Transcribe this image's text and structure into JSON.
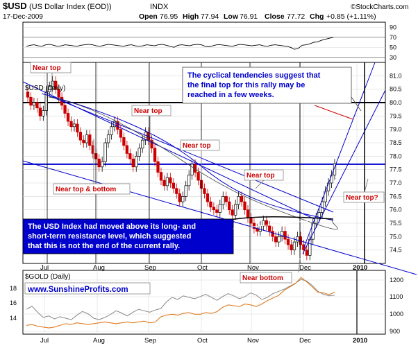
{
  "header": {
    "symbol": "$USD",
    "name": "(US Dollar Index (EOD))",
    "exchange": "INDX",
    "date": "17-Dec-2009",
    "open_label": "Open",
    "open": "76.95",
    "high_label": "High",
    "high": "77.94",
    "low_label": "Low",
    "low": "76.91",
    "close_label": "Close",
    "close": "77.72",
    "chg_label": "Chg",
    "chg": "+0.85 (+1.11%)",
    "credit": "©StockCharts.com"
  },
  "chart_data": [
    {
      "type": "line",
      "panel": "rsi",
      "y_ticks": [
        "90",
        "70",
        "50",
        "30"
      ],
      "ylim": [
        20,
        100
      ],
      "reference_lines": [
        70,
        30
      ],
      "series": [
        {
          "values": [
            52,
            54,
            55,
            53,
            52,
            55,
            56,
            54,
            52,
            53,
            55,
            54,
            53,
            52,
            54,
            55,
            56,
            55,
            53,
            52,
            54,
            56,
            55,
            54,
            53,
            52,
            54,
            55,
            53,
            52,
            53,
            55,
            54,
            53,
            55,
            56,
            54,
            52,
            50,
            54,
            55,
            54,
            53,
            55,
            56,
            55,
            52,
            51,
            53,
            55,
            55,
            54,
            53,
            52,
            54,
            56,
            55,
            54,
            53,
            54,
            55,
            53,
            52,
            54,
            55,
            54,
            53,
            52,
            50,
            46,
            48,
            54,
            55,
            57,
            60,
            61,
            64,
            66,
            68,
            70
          ]
        }
      ]
    },
    {
      "type": "candlestick",
      "panel": "price",
      "title": "$USD (Daily)",
      "y_ticks": [
        "81.0",
        "80.5",
        "80.0",
        "79.5",
        "79.0",
        "78.5",
        "78.0",
        "77.5",
        "77.0",
        "76.5",
        "76.0",
        "75.5",
        "75.0",
        "74.5"
      ],
      "ylim": [
        74.0,
        81.5
      ],
      "x_labels": [
        "Jul",
        "Aug",
        "Sep",
        "Oct",
        "Nov",
        "Dec",
        "2010"
      ],
      "closes": [
        80.2,
        79.9,
        80.0,
        79.8,
        79.5,
        79.7,
        80.4,
        80.6,
        80.8,
        80.5,
        80.2,
        79.9,
        79.6,
        79.3,
        79.1,
        79.2,
        78.9,
        78.6,
        78.5,
        78.8,
        78.4,
        78.1,
        77.9,
        77.6,
        77.8,
        78.5,
        78.8,
        79.1,
        79.3,
        79.0,
        78.7,
        78.4,
        78.1,
        77.9,
        77.6,
        78.0,
        78.3,
        78.6,
        78.9,
        78.6,
        78.3,
        77.8,
        77.4,
        77.1,
        76.9,
        77.2,
        77.0,
        76.8,
        76.6,
        76.3,
        76.5,
        76.9,
        77.3,
        77.7,
        77.4,
        77.1,
        76.8,
        76.6,
        76.3,
        76.1,
        76.0,
        75.9,
        76.2,
        76.5,
        76.3,
        76.0,
        75.8,
        76.2,
        76.5,
        76.3,
        76.0,
        75.7,
        75.5,
        75.3,
        75.2,
        75.4,
        75.6,
        75.4,
        75.2,
        75.0,
        74.8,
        75.0,
        75.2,
        74.9,
        74.7,
        74.5,
        74.8,
        75.0,
        74.7,
        74.5,
        74.3,
        74.9,
        75.5,
        75.7,
        75.9,
        76.3,
        76.7,
        77.0,
        77.3,
        77.72
      ],
      "horizontal_levels": [
        {
          "value": 80.0,
          "color": "#000000"
        },
        {
          "value": 77.7,
          "color": "#0000cc"
        }
      ],
      "annotations": [
        {
          "text": "Near top",
          "color": "#cc0000"
        },
        {
          "text": "Near top",
          "color": "#cc0000"
        },
        {
          "text": "Near top",
          "color": "#cc0000"
        },
        {
          "text": "Near top",
          "color": "#cc0000"
        },
        {
          "text": "Near top & bottom",
          "color": "#cc0000"
        },
        {
          "text": "Near top?",
          "color": "#cc0000"
        },
        {
          "text": "Near bottom",
          "color": "#cc0000"
        }
      ],
      "notes": [
        {
          "lines": [
            "The cyclical tendencies suggest that",
            "the final top for this rally may be",
            "reached in a few weeks."
          ],
          "color": "#0000cc"
        },
        {
          "lines": [
            "The USD Index had moved above its long- and",
            "short-term resistance level, which suggested",
            "that this is not the end of the current rally."
          ],
          "color": "#ffffff",
          "background": "#0000cc"
        }
      ]
    },
    {
      "type": "line",
      "panel": "gold",
      "title": "$GOLD (Daily)",
      "website": "www.SunshineProfits.com",
      "y_ticks_left": [
        "18",
        "16",
        "14"
      ],
      "y_ticks_right": [
        "1200",
        "1100",
        "1000",
        "900"
      ],
      "x_labels": [
        "Jul",
        "Aug",
        "Sep",
        "Oct",
        "Nov",
        "Dec",
        "2010"
      ],
      "series": [
        {
          "color": "#888888",
          "values": [
            15.2,
            15.6,
            14.8,
            14.1,
            14.3,
            13.9,
            14.2,
            14.0,
            13.8,
            14.4,
            14.9,
            14.6,
            14.0,
            13.8,
            14.1,
            14.5,
            15.0,
            14.7,
            14.3,
            14.8,
            15.2,
            15.0,
            14.8,
            15.1,
            15.3,
            16.2,
            16.8,
            16.5,
            17.0,
            16.8,
            16.6,
            16.9,
            17.2,
            16.8,
            16.4,
            16.9,
            17.3,
            17.0,
            16.6,
            16.9,
            17.4,
            17.1,
            16.5,
            16.8,
            17.3,
            17.6,
            17.9,
            18.3,
            18.7,
            19.2,
            19.0,
            18.4,
            17.6,
            17.2,
            17.0,
            17.1
          ]
        },
        {
          "color": "#e07a1e",
          "values": [
            935,
            940,
            930,
            925,
            920,
            925,
            935,
            945,
            940,
            950,
            945,
            940,
            945,
            950,
            955,
            950,
            945,
            950,
            955,
            950,
            955,
            960,
            950,
            955,
            985,
            995,
            1000,
            995,
            1005,
            1010,
            1000,
            1000,
            1010,
            1005,
            1015,
            1040,
            1055,
            1050,
            1045,
            1060,
            1055,
            1045,
            1060,
            1080,
            1095,
            1110,
            1140,
            1160,
            1180,
            1215,
            1190,
            1160,
            1130,
            1125,
            1115,
            1130
          ]
        }
      ]
    }
  ]
}
